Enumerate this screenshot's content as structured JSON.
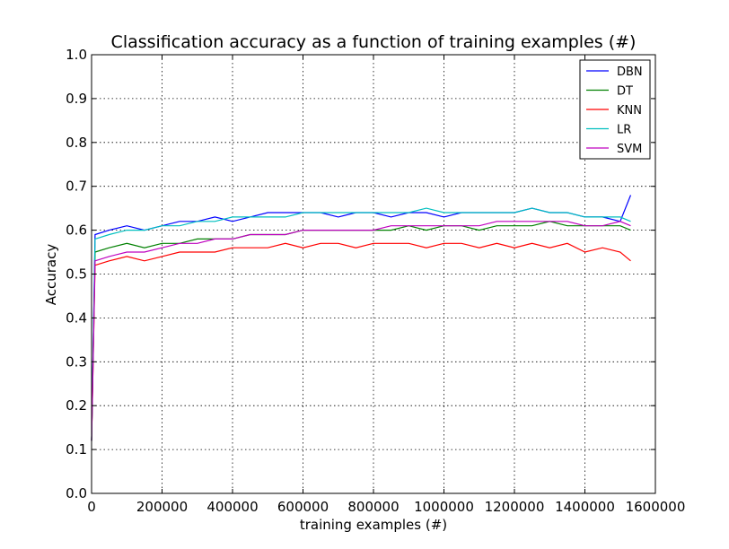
{
  "chart_data": {
    "type": "line",
    "title": "Classification accuracy as a function of training examples (#)",
    "xlabel": "training examples (#)",
    "ylabel": "Accuracy",
    "xlim": [
      0,
      1600000
    ],
    "ylim": [
      0.0,
      1.0
    ],
    "xticks": [
      "0",
      "200000",
      "400000",
      "600000",
      "800000",
      "1000000",
      "1200000",
      "1400000",
      "1600000"
    ],
    "yticks": [
      "0.0",
      "0.1",
      "0.2",
      "0.3",
      "0.4",
      "0.5",
      "0.6",
      "0.7",
      "0.8",
      "0.9",
      "1.0"
    ],
    "grid": true,
    "legend_position": "top-right",
    "x": [
      0,
      10000,
      50000,
      100000,
      150000,
      200000,
      250000,
      300000,
      350000,
      400000,
      450000,
      500000,
      550000,
      600000,
      650000,
      700000,
      750000,
      800000,
      850000,
      900000,
      950000,
      1000000,
      1050000,
      1100000,
      1150000,
      1200000,
      1250000,
      1300000,
      1350000,
      1400000,
      1450000,
      1500000,
      1530000
    ],
    "series": [
      {
        "name": "DBN",
        "color": "#0000ff",
        "values": [
          0.12,
          0.59,
          0.6,
          0.61,
          0.6,
          0.61,
          0.62,
          0.62,
          0.63,
          0.62,
          0.63,
          0.64,
          0.64,
          0.64,
          0.64,
          0.63,
          0.64,
          0.64,
          0.63,
          0.64,
          0.64,
          0.63,
          0.64,
          0.64,
          0.64,
          0.64,
          0.65,
          0.64,
          0.64,
          0.63,
          0.63,
          0.62,
          0.68
        ]
      },
      {
        "name": "DT",
        "color": "#008000",
        "values": [
          0.12,
          0.55,
          0.56,
          0.57,
          0.56,
          0.57,
          0.57,
          0.58,
          0.58,
          0.58,
          0.59,
          0.59,
          0.59,
          0.6,
          0.6,
          0.6,
          0.6,
          0.6,
          0.6,
          0.61,
          0.6,
          0.61,
          0.61,
          0.6,
          0.61,
          0.61,
          0.61,
          0.62,
          0.61,
          0.61,
          0.61,
          0.61,
          0.6
        ]
      },
      {
        "name": "KNN",
        "color": "#ff0000",
        "values": [
          0.12,
          0.52,
          0.53,
          0.54,
          0.53,
          0.54,
          0.55,
          0.55,
          0.55,
          0.56,
          0.56,
          0.56,
          0.57,
          0.56,
          0.57,
          0.57,
          0.56,
          0.57,
          0.57,
          0.57,
          0.56,
          0.57,
          0.57,
          0.56,
          0.57,
          0.56,
          0.57,
          0.56,
          0.57,
          0.55,
          0.56,
          0.55,
          0.53
        ]
      },
      {
        "name": "LR",
        "color": "#00bfbf",
        "values": [
          0.12,
          0.58,
          0.59,
          0.6,
          0.6,
          0.61,
          0.61,
          0.62,
          0.62,
          0.63,
          0.63,
          0.63,
          0.63,
          0.64,
          0.64,
          0.64,
          0.64,
          0.64,
          0.64,
          0.64,
          0.65,
          0.64,
          0.64,
          0.64,
          0.64,
          0.64,
          0.65,
          0.64,
          0.64,
          0.63,
          0.63,
          0.63,
          0.62
        ]
      },
      {
        "name": "SVM",
        "color": "#bf00bf",
        "values": [
          0.12,
          0.53,
          0.54,
          0.55,
          0.55,
          0.56,
          0.57,
          0.57,
          0.58,
          0.58,
          0.59,
          0.59,
          0.59,
          0.6,
          0.6,
          0.6,
          0.6,
          0.6,
          0.61,
          0.61,
          0.61,
          0.61,
          0.61,
          0.61,
          0.62,
          0.62,
          0.62,
          0.62,
          0.62,
          0.61,
          0.61,
          0.62,
          0.61
        ]
      }
    ]
  }
}
